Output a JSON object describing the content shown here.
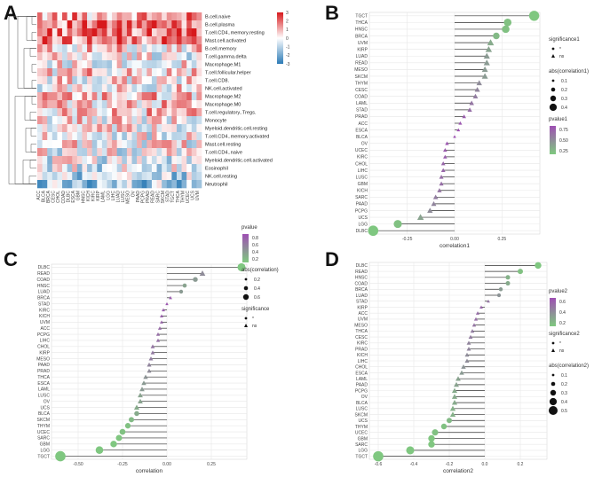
{
  "panels": {
    "A": {
      "letter": "A",
      "chart_data": {
        "type": "heatmap",
        "rows": [
          "B.cell.naive",
          "B.cell.plasma",
          "T.cell.CD4..memory.resting",
          "Mast.cell.activated",
          "B.cell.memory",
          "T.cell.gamma.delta",
          "Macrophage.M1",
          "T.cell.follicular.helper",
          "T.cell.CD8.",
          "NK.cell.activated",
          "Macrophage.M2",
          "Macrophage.M0",
          "T.cell.regulatory..Tregs.",
          "Monocyte",
          "Myeloid.dendritic.cell.resting",
          "T.cell.CD4..memory.activated",
          "Mast.cell.resting",
          "T.cell.CD4..naive",
          "Myeloid.dendritic.cell.activated",
          "Eosinophil",
          "NK.cell.resting",
          "Neutrophil"
        ],
        "columns": [
          "ACC",
          "BLCA",
          "BRCA",
          "CESC",
          "CHOL",
          "COAD",
          "DLBC",
          "ESCA",
          "GBM",
          "HNSC",
          "KICH",
          "KIRC",
          "KIRP",
          "LAML",
          "LGG",
          "LIHC",
          "LUAD",
          "LUSC",
          "MESO",
          "OV",
          "PAAD",
          "PCPG",
          "PRAD",
          "READ",
          "SARC",
          "SKCM",
          "STAD",
          "TGCT",
          "THCA",
          "THYM",
          "UCEC",
          "UCS",
          "UVM"
        ],
        "colorbar_ticks": [
          "3",
          "2",
          "1",
          "0",
          "-1",
          "-2",
          "-3"
        ],
        "colors": {
          "high": "#d7191c",
          "mid": "#ffffff",
          "low": "#2c7bb6"
        }
      }
    },
    "B": {
      "letter": "B",
      "chart_data": {
        "type": "scatter",
        "style": "lollipop",
        "categories": [
          "TGCT",
          "THCA",
          "HNSC",
          "BRCA",
          "UVM",
          "KIRP",
          "LUAD",
          "READ",
          "MESO",
          "SKCM",
          "THYM",
          "CESC",
          "COAD",
          "LAML",
          "STAD",
          "PRAD",
          "ACC",
          "ESCA",
          "BLCA",
          "OV",
          "UCEC",
          "KIRC",
          "CHOL",
          "LIHC",
          "LUSC",
          "GBM",
          "KICH",
          "SARC",
          "PAAD",
          "PCPG",
          "UCS",
          "LGG",
          "DLBC"
        ],
        "values": [
          0.42,
          0.28,
          0.27,
          0.22,
          0.19,
          0.18,
          0.17,
          0.17,
          0.16,
          0.16,
          0.13,
          0.12,
          0.11,
          0.09,
          0.08,
          0.05,
          0.03,
          0.02,
          0.0,
          -0.04,
          -0.05,
          -0.05,
          -0.06,
          -0.06,
          -0.07,
          -0.07,
          -0.08,
          -0.1,
          -0.11,
          -0.13,
          -0.18,
          -0.3,
          -0.43
        ],
        "significant": [
          true,
          true,
          true,
          true,
          false,
          false,
          false,
          false,
          false,
          false,
          false,
          false,
          false,
          false,
          false,
          false,
          false,
          false,
          false,
          false,
          false,
          false,
          false,
          false,
          false,
          false,
          false,
          false,
          false,
          false,
          false,
          true,
          true
        ],
        "pvalue": [
          0.01,
          0.05,
          0.05,
          0.1,
          0.2,
          0.25,
          0.3,
          0.3,
          0.3,
          0.3,
          0.4,
          0.45,
          0.5,
          0.55,
          0.6,
          0.7,
          0.75,
          0.8,
          0.8,
          0.75,
          0.7,
          0.7,
          0.65,
          0.65,
          0.6,
          0.6,
          0.55,
          0.5,
          0.45,
          0.4,
          0.25,
          0.05,
          0.01
        ],
        "xlabel": "correlation1",
        "xlim": [
          -0.45,
          0.45
        ],
        "xticks": [
          "-0.25",
          "0.00",
          "0.25"
        ],
        "legend_placement": "right",
        "legends": {
          "significance": {
            "title": "significance1",
            "items": [
              "*",
              "ns"
            ]
          },
          "size": {
            "title": "abs(correlation1)",
            "items": [
              "0.1",
              "0.2",
              "0.3",
              "0.4"
            ]
          },
          "color": {
            "title": "pvalue1",
            "ticks": [
              "0.75",
              "0.50",
              "0.25"
            ]
          }
        },
        "colors": {
          "low_p": "#7fc97f",
          "high_p": "#9e4fb3"
        }
      }
    },
    "C": {
      "letter": "C",
      "chart_data": {
        "type": "scatter",
        "style": "lollipop",
        "categories": [
          "DLBC",
          "READ",
          "COAD",
          "HNSC",
          "LUAD",
          "BRCA",
          "STAD",
          "KIRC",
          "KICH",
          "UVM",
          "ACC",
          "PCPG",
          "LIHC",
          "CHOL",
          "KIRP",
          "MESO",
          "PAAD",
          "PRAD",
          "THCA",
          "ESCA",
          "LAML",
          "LUSC",
          "OV",
          "UCS",
          "BLCA",
          "SKCM",
          "THYM",
          "UCEC",
          "SARC",
          "GBM",
          "LGG",
          "TGCT"
        ],
        "values": [
          0.42,
          0.2,
          0.16,
          0.1,
          0.08,
          0.02,
          0.0,
          -0.02,
          -0.03,
          -0.03,
          -0.04,
          -0.05,
          -0.05,
          -0.08,
          -0.08,
          -0.09,
          -0.1,
          -0.1,
          -0.12,
          -0.13,
          -0.14,
          -0.15,
          -0.15,
          -0.17,
          -0.17,
          -0.2,
          -0.22,
          -0.25,
          -0.27,
          -0.3,
          -0.38,
          -0.6
        ],
        "significant": [
          true,
          false,
          true,
          true,
          true,
          false,
          false,
          false,
          false,
          false,
          false,
          false,
          false,
          false,
          false,
          false,
          false,
          false,
          false,
          false,
          false,
          false,
          false,
          false,
          true,
          true,
          true,
          true,
          true,
          true,
          true,
          true
        ],
        "pvalue": [
          0.01,
          0.4,
          0.3,
          0.25,
          0.3,
          0.7,
          0.75,
          0.7,
          0.68,
          0.65,
          0.62,
          0.6,
          0.58,
          0.55,
          0.52,
          0.5,
          0.45,
          0.4,
          0.35,
          0.3,
          0.3,
          0.25,
          0.25,
          0.2,
          0.2,
          0.1,
          0.05,
          0.05,
          0.02,
          0.01,
          0.01,
          0.01
        ],
        "xlabel": "correlation",
        "xlim": [
          -0.65,
          0.45
        ],
        "xticks": [
          "-0.50",
          "-0.25",
          "0.00",
          "0.25"
        ],
        "legend_placement": "right",
        "legends": {
          "color": {
            "title": "pvalue",
            "ticks": [
              "0.8",
              "0.6",
              "0.4",
              "0.2"
            ]
          },
          "size": {
            "title": "abs(correlation)",
            "items": [
              "0.2",
              "0.4",
              "0.6"
            ]
          },
          "significance": {
            "title": "significance",
            "items": [
              "*",
              "ns"
            ]
          }
        },
        "colors": {
          "low_p": "#7fc97f",
          "high_p": "#9e4fb3"
        }
      }
    },
    "D": {
      "letter": "D",
      "chart_data": {
        "type": "scatter",
        "style": "lollipop",
        "categories": [
          "DLBC",
          "READ",
          "HNSC",
          "COAD",
          "BRCA",
          "LUAD",
          "STAD",
          "KIRP",
          "ACC",
          "UVM",
          "MESO",
          "THCA",
          "CESC",
          "KIRC",
          "PRAD",
          "KICH",
          "LIHC",
          "CHOL",
          "ESCA",
          "LAML",
          "PAAD",
          "PCPG",
          "OV",
          "BLCA",
          "LUSC",
          "SKCM",
          "UCS",
          "THYM",
          "UCEC",
          "GBM",
          "SARC",
          "LGG",
          "TGCT"
        ],
        "values": [
          0.3,
          0.2,
          0.13,
          0.13,
          0.09,
          0.08,
          0.02,
          -0.02,
          -0.04,
          -0.05,
          -0.06,
          -0.07,
          -0.08,
          -0.09,
          -0.09,
          -0.1,
          -0.1,
          -0.12,
          -0.13,
          -0.15,
          -0.16,
          -0.17,
          -0.17,
          -0.17,
          -0.18,
          -0.18,
          -0.2,
          -0.23,
          -0.28,
          -0.3,
          -0.3,
          -0.42,
          -0.6
        ],
        "significant": [
          true,
          true,
          true,
          true,
          true,
          true,
          false,
          false,
          false,
          false,
          false,
          false,
          false,
          false,
          false,
          false,
          false,
          false,
          false,
          false,
          false,
          false,
          false,
          false,
          false,
          false,
          true,
          true,
          true,
          true,
          true,
          true,
          true
        ],
        "pvalue": [
          0.01,
          0.05,
          0.15,
          0.2,
          0.3,
          0.35,
          0.55,
          0.65,
          0.6,
          0.6,
          0.55,
          0.5,
          0.5,
          0.45,
          0.45,
          0.4,
          0.4,
          0.35,
          0.3,
          0.25,
          0.25,
          0.2,
          0.2,
          0.2,
          0.15,
          0.15,
          0.1,
          0.05,
          0.05,
          0.02,
          0.02,
          0.01,
          0.01
        ],
        "xlabel": "correlation2",
        "xlim": [
          -0.65,
          0.35
        ],
        "xticks": [
          "-0.6",
          "-0.4",
          "-0.2",
          "0.0",
          "0.2"
        ],
        "legend_placement": "right",
        "legends": {
          "color": {
            "title": "pvalue2",
            "ticks": [
              "0.6",
              "0.4",
              "0.2"
            ]
          },
          "significance": {
            "title": "significance2",
            "items": [
              "*",
              "ns"
            ]
          },
          "size": {
            "title": "abs(correlation2)",
            "items": [
              "0.1",
              "0.2",
              "0.3",
              "0.4",
              "0.5"
            ]
          }
        },
        "colors": {
          "low_p": "#7fc97f",
          "high_p": "#9e4fb3"
        }
      }
    }
  }
}
